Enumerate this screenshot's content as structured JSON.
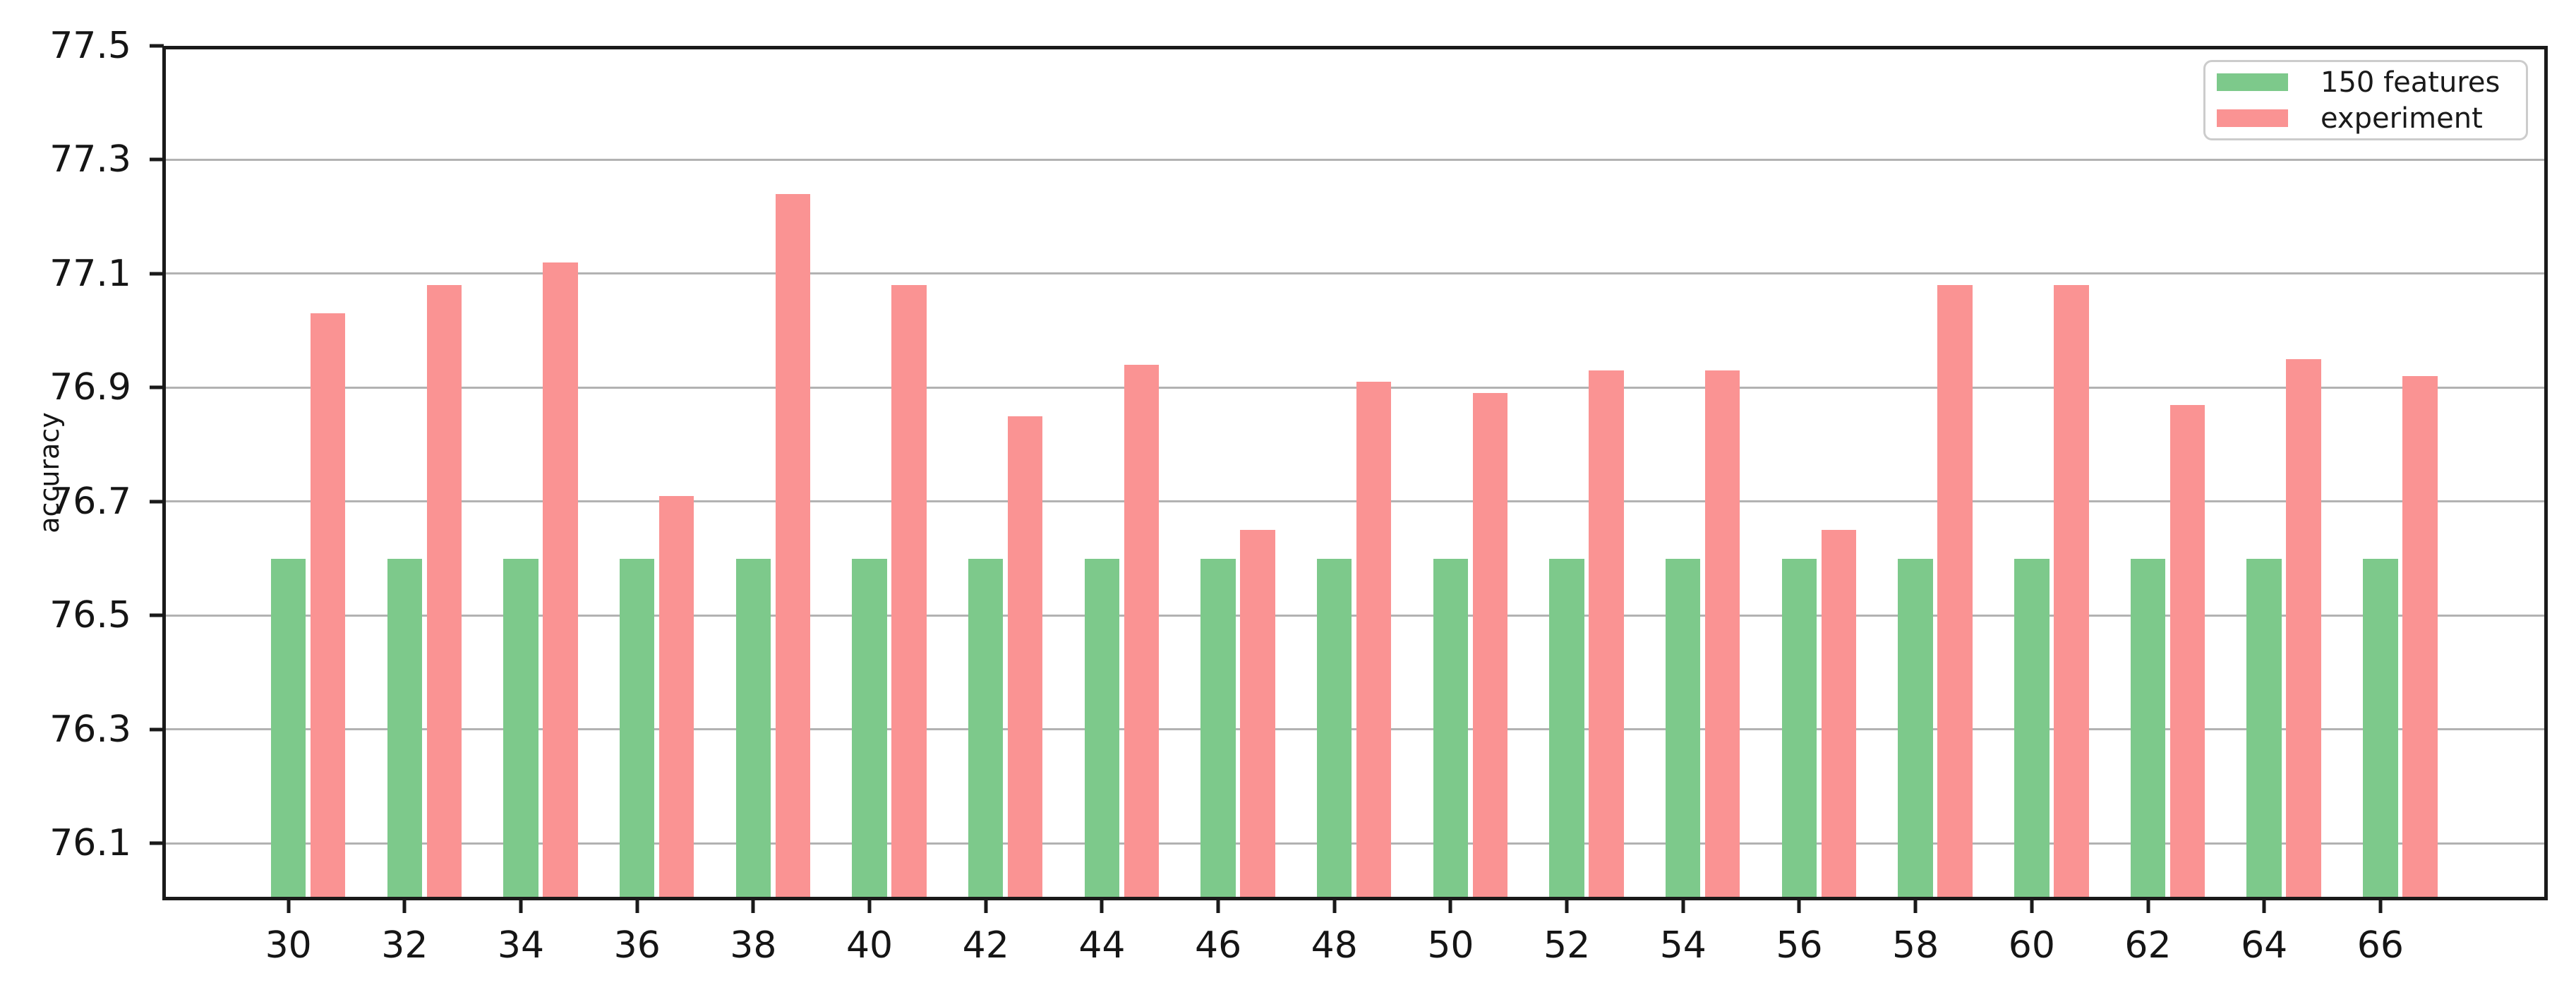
{
  "chart_data": {
    "type": "bar",
    "title": "",
    "xlabel": "",
    "ylabel": "accuracy",
    "categories": [
      30,
      32,
      34,
      36,
      38,
      40,
      42,
      44,
      46,
      48,
      50,
      52,
      54,
      56,
      58,
      60,
      62,
      64,
      66
    ],
    "series": [
      {
        "name": "150 features",
        "color": "#7dc98b",
        "values": [
          76.6,
          76.6,
          76.6,
          76.6,
          76.6,
          76.6,
          76.6,
          76.6,
          76.6,
          76.6,
          76.6,
          76.6,
          76.6,
          76.6,
          76.6,
          76.6,
          76.6,
          76.6,
          76.6
        ]
      },
      {
        "name": "experiment",
        "color": "#fa9393",
        "values": [
          77.03,
          77.08,
          77.12,
          76.71,
          77.24,
          77.08,
          76.85,
          76.94,
          76.65,
          76.91,
          76.89,
          76.93,
          76.93,
          76.65,
          77.08,
          77.08,
          76.87,
          76.95,
          76.92
        ]
      }
    ],
    "ylim": [
      76.0,
      77.5
    ],
    "yticks": [
      76.1,
      76.3,
      76.5,
      76.7,
      76.9,
      77.1,
      77.3,
      77.5
    ],
    "grid": true,
    "legend_position": "upper right",
    "gridline_color": "#b2b2b2"
  }
}
